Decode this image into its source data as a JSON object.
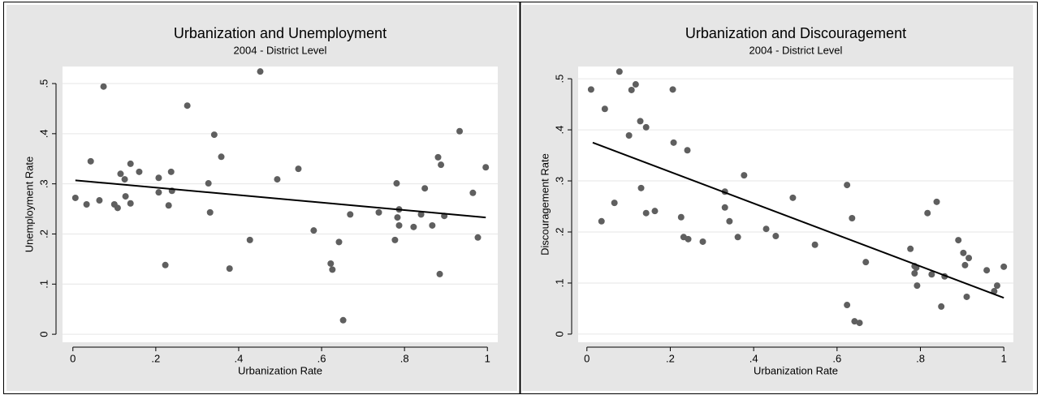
{
  "chart_data": [
    {
      "type": "scatter",
      "title": "Urbanization and Unemployment",
      "subtitle": "2004 - District Level",
      "x_label": "Urbanization Rate",
      "y_label": "Unemployment Rate",
      "color": "#5f5f5f",
      "grid": true,
      "xlim": [
        -0.025,
        1.025
      ],
      "ylim": [
        -0.016,
        0.534
      ],
      "xticks": [
        0,
        {
          "value": 0.2,
          "label": ".2"
        },
        {
          "value": 0.4,
          "label": ".4"
        },
        {
          "value": 0.6,
          "label": ".6"
        },
        {
          "value": 0.8,
          "label": ".8"
        },
        1
      ],
      "yticks": [
        0,
        {
          "value": 0.1,
          "label": ".1"
        },
        {
          "value": 0.2,
          "label": ".2"
        },
        {
          "value": 0.3,
          "label": ".3"
        },
        {
          "value": 0.4,
          "label": ".4"
        },
        {
          "value": 0.5,
          "label": ".5"
        }
      ],
      "x": [
        0.006,
        0.033,
        0.043,
        0.064,
        0.074,
        0.1,
        0.108,
        0.115,
        0.125,
        0.127,
        0.139,
        0.139,
        0.16,
        0.207,
        0.207,
        0.223,
        0.231,
        0.237,
        0.239,
        0.276,
        0.327,
        0.331,
        0.341,
        0.358,
        0.378,
        0.427,
        0.452,
        0.493,
        0.544,
        0.581,
        0.622,
        0.626,
        0.642,
        0.652,
        0.669,
        0.738,
        0.777,
        0.781,
        0.783,
        0.787,
        0.787,
        0.822,
        0.84,
        0.849,
        0.867,
        0.881,
        0.885,
        0.888,
        0.896,
        0.933,
        0.965,
        0.977,
        0.996
      ],
      "values": [
        0.272,
        0.259,
        0.345,
        0.267,
        0.494,
        0.259,
        0.252,
        0.32,
        0.309,
        0.275,
        0.34,
        0.261,
        0.324,
        0.283,
        0.312,
        0.138,
        0.257,
        0.324,
        0.286,
        0.456,
        0.301,
        0.243,
        0.398,
        0.354,
        0.131,
        0.188,
        0.524,
        0.309,
        0.33,
        0.207,
        0.141,
        0.129,
        0.184,
        0.028,
        0.239,
        0.243,
        0.188,
        0.301,
        0.233,
        0.249,
        0.217,
        0.214,
        0.239,
        0.291,
        0.217,
        0.353,
        0.12,
        0.338,
        0.236,
        0.405,
        0.282,
        0.193,
        0.333
      ],
      "fit": {
        "color": "#000000",
        "x": [
          0.006,
          0.996
        ],
        "values": [
          0.307,
          0.233
        ]
      }
    },
    {
      "type": "scatter",
      "title": "Urbanization and Discouragement",
      "subtitle": "2004 - District Level",
      "x_label": "Urbanization Rate",
      "y_label": "Discouragement Rate",
      "color": "#5f5f5f",
      "grid": true,
      "xlim": [
        -0.021,
        1.023
      ],
      "ylim": [
        -0.016,
        0.524
      ],
      "xticks": [
        0,
        {
          "value": 0.2,
          "label": ".2"
        },
        {
          "value": 0.4,
          "label": ".4"
        },
        {
          "value": 0.6,
          "label": ".6"
        },
        {
          "value": 0.8,
          "label": ".8"
        },
        1
      ],
      "yticks": [
        0,
        {
          "value": 0.1,
          "label": ".1"
        },
        {
          "value": 0.2,
          "label": ".2"
        },
        {
          "value": 0.3,
          "label": ".3"
        },
        {
          "value": 0.4,
          "label": ".4"
        },
        {
          "value": 0.5,
          "label": ".5"
        }
      ],
      "x": [
        0.01,
        0.035,
        0.043,
        0.066,
        0.078,
        0.101,
        0.107,
        0.117,
        0.128,
        0.13,
        0.142,
        0.142,
        0.163,
        0.206,
        0.208,
        0.226,
        0.232,
        0.241,
        0.243,
        0.278,
        0.377,
        0.331,
        0.331,
        0.342,
        0.362,
        0.43,
        0.453,
        0.494,
        0.547,
        0.636,
        0.624,
        0.624,
        0.642,
        0.654,
        0.669,
        0.776,
        0.817,
        0.827,
        0.786,
        0.786,
        0.79,
        0.792,
        0.839,
        0.85,
        0.858,
        0.891,
        0.903,
        0.907,
        0.911,
        0.916,
        0.959,
        0.984,
        0.977,
        1.0
      ],
      "values": [
        0.479,
        0.221,
        0.441,
        0.257,
        0.514,
        0.389,
        0.478,
        0.489,
        0.417,
        0.286,
        0.405,
        0.237,
        0.241,
        0.479,
        0.375,
        0.229,
        0.19,
        0.36,
        0.186,
        0.181,
        0.311,
        0.279,
        0.248,
        0.221,
        0.19,
        0.206,
        0.192,
        0.267,
        0.175,
        0.227,
        0.292,
        0.057,
        0.025,
        0.022,
        0.141,
        0.167,
        0.237,
        0.117,
        0.119,
        0.133,
        0.13,
        0.095,
        0.259,
        0.054,
        0.113,
        0.184,
        0.159,
        0.135,
        0.073,
        0.149,
        0.125,
        0.095,
        0.084,
        0.132
      ],
      "fit": {
        "color": "#000000",
        "x": [
          0.014,
          1.0
        ],
        "values": [
          0.375,
          0.071
        ]
      }
    }
  ]
}
